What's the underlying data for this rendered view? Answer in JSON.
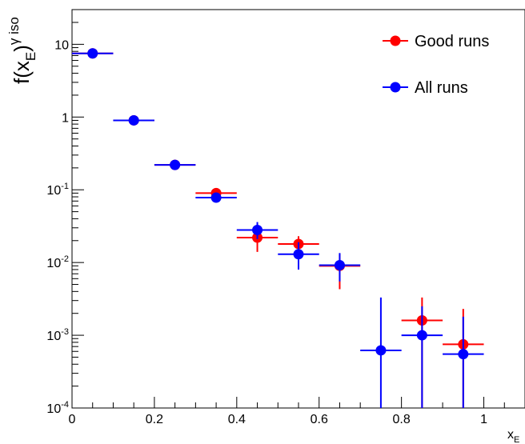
{
  "chart_data": {
    "type": "scatter",
    "title": "",
    "xlabel": {
      "base": "x",
      "sub": "E"
    },
    "ylabel": {
      "base": "f(x",
      "sub": "E",
      "close": ")",
      "sup": "γ iso"
    },
    "xlim": [
      0,
      1.1
    ],
    "ylim": [
      0.0001,
      30
    ],
    "yscale": "log",
    "grid": false,
    "legend_position": "top-right",
    "x_ticks": [
      {
        "value": 0,
        "label": "0"
      },
      {
        "value": 0.2,
        "label": "0.2"
      },
      {
        "value": 0.4,
        "label": "0.4"
      },
      {
        "value": 0.6,
        "label": "0.6"
      },
      {
        "value": 0.8,
        "label": "0.8"
      },
      {
        "value": 1,
        "label": "1"
      }
    ],
    "y_ticks": [
      {
        "value": 0.0001,
        "base": "10",
        "exp": "-4"
      },
      {
        "value": 0.001,
        "base": "10",
        "exp": "-3"
      },
      {
        "value": 0.01,
        "base": "10",
        "exp": "-2"
      },
      {
        "value": 0.1,
        "base": "10",
        "exp": "-1"
      },
      {
        "value": 1,
        "base": "1",
        "exp": ""
      },
      {
        "value": 10,
        "base": "10",
        "exp": ""
      }
    ],
    "series": [
      {
        "name": "Good runs",
        "color": "#ff0000",
        "points": [
          {
            "x": 0.05,
            "xerr": 0.05,
            "y": 7.5,
            "ylo": 7.5,
            "yhi": 7.5
          },
          {
            "x": 0.15,
            "xerr": 0.05,
            "y": 0.9,
            "ylo": 0.9,
            "yhi": 0.9
          },
          {
            "x": 0.25,
            "xerr": 0.05,
            "y": 0.22,
            "ylo": 0.22,
            "yhi": 0.22
          },
          {
            "x": 0.35,
            "xerr": 0.05,
            "y": 0.09,
            "ylo": 0.09,
            "yhi": 0.09
          },
          {
            "x": 0.45,
            "xerr": 0.05,
            "y": 0.022,
            "ylo": 0.014,
            "yhi": 0.031
          },
          {
            "x": 0.55,
            "xerr": 0.05,
            "y": 0.018,
            "ylo": 0.013,
            "yhi": 0.023
          },
          {
            "x": 0.65,
            "xerr": 0.05,
            "y": 0.009,
            "ylo": 0.0043,
            "yhi": 0.013
          },
          {
            "x": 0.85,
            "xerr": 0.05,
            "y": 0.0016,
            "ylo": 0.0001,
            "yhi": 0.0033
          },
          {
            "x": 0.95,
            "xerr": 0.05,
            "y": 0.00075,
            "ylo": 0.0001,
            "yhi": 0.0023
          }
        ]
      },
      {
        "name": "All runs",
        "color": "#0000ff",
        "points": [
          {
            "x": 0.05,
            "xerr": 0.05,
            "y": 7.5,
            "ylo": 7.5,
            "yhi": 7.5
          },
          {
            "x": 0.15,
            "xerr": 0.05,
            "y": 0.9,
            "ylo": 0.9,
            "yhi": 0.9
          },
          {
            "x": 0.25,
            "xerr": 0.05,
            "y": 0.22,
            "ylo": 0.22,
            "yhi": 0.22
          },
          {
            "x": 0.35,
            "xerr": 0.05,
            "y": 0.078,
            "ylo": 0.078,
            "yhi": 0.078
          },
          {
            "x": 0.45,
            "xerr": 0.05,
            "y": 0.028,
            "ylo": 0.021,
            "yhi": 0.036
          },
          {
            "x": 0.55,
            "xerr": 0.05,
            "y": 0.013,
            "ylo": 0.008,
            "yhi": 0.019
          },
          {
            "x": 0.65,
            "xerr": 0.05,
            "y": 0.0092,
            "ylo": 0.0055,
            "yhi": 0.0135
          },
          {
            "x": 0.75,
            "xerr": 0.05,
            "y": 0.00062,
            "ylo": 0.0001,
            "yhi": 0.0033
          },
          {
            "x": 0.85,
            "xerr": 0.05,
            "y": 0.001,
            "ylo": 0.0001,
            "yhi": 0.0025
          },
          {
            "x": 0.95,
            "xerr": 0.05,
            "y": 0.00055,
            "ylo": 0.0001,
            "yhi": 0.0018
          }
        ]
      }
    ]
  }
}
